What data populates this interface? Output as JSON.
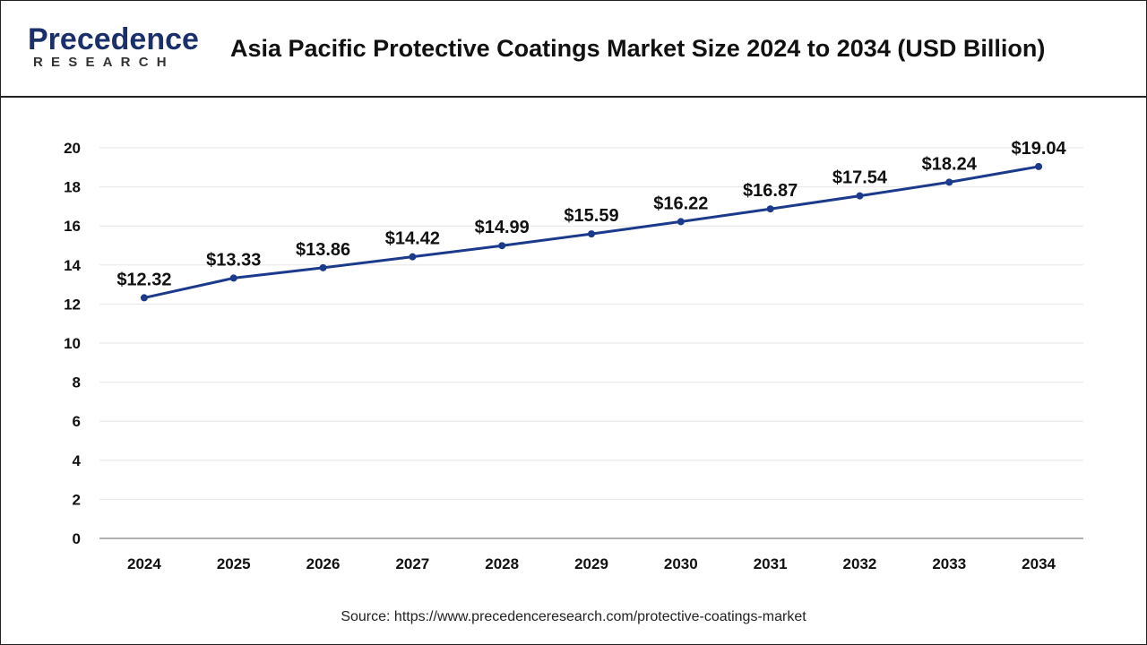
{
  "logo": {
    "main": "Precedence",
    "sub": "RESEARCH"
  },
  "title": "Asia Pacific Protective Coatings Market Size 2024 to 2034 (USD Billion)",
  "source": "Source: https://www.precedenceresearch.com/protective-coatings-market",
  "colors": {
    "line": "#1b3a8c",
    "marker": "#1b3a8c",
    "grid": "#e6e6e6",
    "axis": "#999999"
  },
  "chart_data": {
    "type": "line",
    "title": "Asia Pacific Protective Coatings Market Size 2024 to 2034 (USD Billion)",
    "xlabel": "",
    "ylabel": "",
    "categories": [
      "2024",
      "2025",
      "2026",
      "2027",
      "2028",
      "2029",
      "2030",
      "2031",
      "2032",
      "2033",
      "2034"
    ],
    "series": [
      {
        "values": [
          12.32,
          13.33,
          13.86,
          14.42,
          14.99,
          15.59,
          16.22,
          16.87,
          17.54,
          18.24,
          19.04
        ],
        "data_labels": [
          "$12.32",
          "$13.33",
          "$13.86",
          "$14.42",
          "$14.99",
          "$15.59",
          "$16.22",
          "$16.87",
          "$17.54",
          "$18.24",
          "$19.04"
        ]
      }
    ],
    "ylim": [
      0,
      20
    ],
    "yticks": [
      0,
      2,
      4,
      6,
      8,
      10,
      12,
      14,
      16,
      18,
      20
    ],
    "grid": true,
    "legend": "none"
  }
}
